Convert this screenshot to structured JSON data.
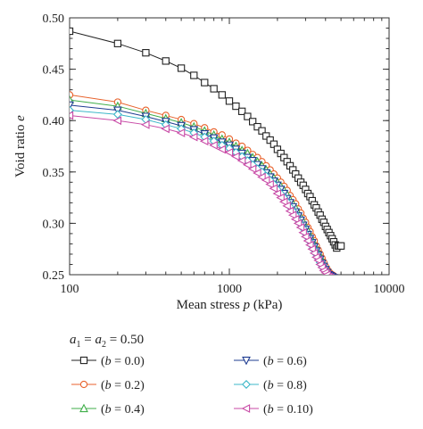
{
  "chart_data": {
    "type": "line",
    "title": "",
    "xlabel_prefix": "Mean stress ",
    "xlabel_var": "p",
    "xlabel_suffix": " (kPa)",
    "ylabel_prefix": "Void ratio ",
    "ylabel_var": "e",
    "x_scale": "log",
    "xlim": [
      100,
      10000
    ],
    "ylim": [
      0.25,
      0.5
    ],
    "x_ticks": [
      100,
      1000,
      10000
    ],
    "x_tick_labels": [
      "100",
      "1000",
      "10000"
    ],
    "y_ticks": [
      0.25,
      0.3,
      0.35,
      0.4,
      0.45,
      0.5
    ],
    "y_tick_labels": [
      "0.25",
      "0.30",
      "0.35",
      "0.40",
      "0.45",
      "0.50"
    ],
    "grid": false,
    "legend_header": {
      "a": "a",
      "sub1": "1",
      "eq1": " = ",
      "sub2": "2",
      "eq2": " = 0.50"
    },
    "legend_position": "below",
    "series": [
      {
        "name": "(b = 0.0)",
        "var": "b",
        "val": " = 0.0)",
        "marker": "square",
        "color": "#222222",
        "x": [
          100,
          200,
          300,
          400,
          500,
          600,
          700,
          800,
          900,
          1000,
          1100,
          1200,
          1300,
          1400,
          1500,
          1600,
          1700,
          1800,
          1900,
          2000,
          2100,
          2200,
          2300,
          2400,
          2500,
          2600,
          2700,
          2800,
          2900,
          3000,
          3100,
          3200,
          3300,
          3400,
          3500,
          3600,
          3700,
          3800,
          3900,
          4000,
          4100,
          4200,
          4300,
          4400,
          4500,
          4600,
          4700,
          4800,
          4900,
          5000
        ],
        "y": [
          0.487,
          0.475,
          0.466,
          0.458,
          0.451,
          0.444,
          0.437,
          0.431,
          0.425,
          0.419,
          0.414,
          0.409,
          0.404,
          0.399,
          0.394,
          0.39,
          0.385,
          0.381,
          0.377,
          0.372,
          0.368,
          0.364,
          0.36,
          0.356,
          0.352,
          0.348,
          0.344,
          0.34,
          0.337,
          0.333,
          0.329,
          0.326,
          0.322,
          0.318,
          0.315,
          0.311,
          0.308,
          0.304,
          0.301,
          0.297,
          0.294,
          0.291,
          0.288,
          0.285,
          0.282,
          0.279,
          0.276,
          0.278,
          0.278,
          0.278
        ]
      },
      {
        "name": "(b = 0.2)",
        "var": "b",
        "val": " = 0.2)",
        "marker": "circle",
        "color": "#e8622c",
        "x": [
          100,
          200,
          300,
          400,
          500,
          600,
          700,
          800,
          900,
          1000,
          1100,
          1200,
          1300,
          1400,
          1500,
          1600,
          1700,
          1800,
          1900,
          2000,
          2100,
          2200,
          2300,
          2400,
          2500,
          2600,
          2700,
          2800,
          2900,
          3000,
          3100,
          3200,
          3300,
          3400,
          3500,
          3600,
          3700,
          3800,
          3900,
          4000,
          4100,
          4200,
          4300,
          4400,
          4500
        ],
        "y": [
          0.425,
          0.418,
          0.41,
          0.405,
          0.401,
          0.397,
          0.393,
          0.389,
          0.386,
          0.382,
          0.378,
          0.375,
          0.371,
          0.367,
          0.364,
          0.36,
          0.356,
          0.352,
          0.348,
          0.344,
          0.34,
          0.336,
          0.332,
          0.327,
          0.323,
          0.319,
          0.314,
          0.31,
          0.305,
          0.301,
          0.296,
          0.292,
          0.287,
          0.283,
          0.278,
          0.274,
          0.27,
          0.266,
          0.262,
          0.258,
          0.255,
          0.253,
          0.251,
          0.25,
          0.249
        ]
      },
      {
        "name": "(b = 0.4)",
        "var": "b",
        "val": " = 0.4)",
        "marker": "triangle-up",
        "color": "#3fae49",
        "x": [
          100,
          200,
          300,
          400,
          500,
          600,
          700,
          800,
          900,
          1000,
          1100,
          1200,
          1300,
          1400,
          1500,
          1600,
          1700,
          1800,
          1900,
          2000,
          2100,
          2200,
          2300,
          2400,
          2500,
          2600,
          2700,
          2800,
          2900,
          3000,
          3100,
          3200,
          3300,
          3400,
          3500,
          3600,
          3700,
          3800,
          3900,
          4000,
          4100,
          4200,
          4300,
          4400,
          4500
        ],
        "y": [
          0.42,
          0.414,
          0.407,
          0.402,
          0.398,
          0.394,
          0.39,
          0.386,
          0.382,
          0.379,
          0.375,
          0.371,
          0.368,
          0.364,
          0.36,
          0.356,
          0.352,
          0.348,
          0.344,
          0.34,
          0.336,
          0.332,
          0.328,
          0.323,
          0.319,
          0.315,
          0.31,
          0.306,
          0.302,
          0.297,
          0.293,
          0.288,
          0.284,
          0.28,
          0.276,
          0.272,
          0.268,
          0.264,
          0.26,
          0.257,
          0.254,
          0.252,
          0.25,
          0.249,
          0.248
        ]
      },
      {
        "name": "(b = 0.6)",
        "var": "b",
        "val": " = 0.6)",
        "marker": "triangle-down",
        "color": "#1f3c91",
        "x": [
          100,
          200,
          300,
          400,
          500,
          600,
          700,
          800,
          900,
          1000,
          1100,
          1200,
          1300,
          1400,
          1500,
          1600,
          1700,
          1800,
          1900,
          2000,
          2100,
          2200,
          2300,
          2400,
          2500,
          2600,
          2700,
          2800,
          2900,
          3000,
          3100,
          3200,
          3300,
          3400,
          3500,
          3600,
          3700,
          3800,
          3900,
          4000,
          4100,
          4200,
          4300,
          4400,
          4500
        ],
        "y": [
          0.415,
          0.41,
          0.404,
          0.399,
          0.395,
          0.391,
          0.387,
          0.383,
          0.379,
          0.376,
          0.372,
          0.368,
          0.364,
          0.361,
          0.357,
          0.353,
          0.349,
          0.345,
          0.341,
          0.337,
          0.333,
          0.329,
          0.324,
          0.32,
          0.316,
          0.311,
          0.307,
          0.303,
          0.298,
          0.294,
          0.289,
          0.285,
          0.281,
          0.277,
          0.273,
          0.269,
          0.265,
          0.261,
          0.258,
          0.255,
          0.252,
          0.25,
          0.249,
          0.248,
          0.247
        ]
      },
      {
        "name": "(b = 0.8)",
        "var": "b",
        "val": " = 0.8)",
        "marker": "diamond",
        "color": "#3cb7c8",
        "x": [
          100,
          200,
          300,
          400,
          500,
          600,
          700,
          800,
          900,
          1000,
          1100,
          1200,
          1300,
          1400,
          1500,
          1600,
          1700,
          1800,
          1900,
          2000,
          2100,
          2200,
          2300,
          2400,
          2500,
          2600,
          2700,
          2800,
          2900,
          3000,
          3100,
          3200,
          3300,
          3400,
          3500,
          3600,
          3700,
          3800,
          3900,
          4000,
          4100,
          4200,
          4300,
          4400,
          4500
        ],
        "y": [
          0.41,
          0.406,
          0.401,
          0.396,
          0.392,
          0.388,
          0.384,
          0.38,
          0.376,
          0.373,
          0.369,
          0.365,
          0.361,
          0.357,
          0.353,
          0.35,
          0.346,
          0.342,
          0.338,
          0.333,
          0.329,
          0.325,
          0.321,
          0.316,
          0.312,
          0.308,
          0.303,
          0.299,
          0.295,
          0.29,
          0.286,
          0.282,
          0.278,
          0.274,
          0.27,
          0.266,
          0.262,
          0.259,
          0.256,
          0.253,
          0.251,
          0.249,
          0.248,
          0.247,
          0.246
        ]
      },
      {
        "name": "(b = 0.10)",
        "var": "b",
        "val": " = 0.10)",
        "marker": "triangle-left",
        "color": "#c84aa6",
        "x": [
          100,
          200,
          300,
          400,
          500,
          600,
          700,
          800,
          900,
          1000,
          1100,
          1200,
          1300,
          1400,
          1500,
          1600,
          1700,
          1800,
          1900,
          2000,
          2100,
          2200,
          2300,
          2400,
          2500,
          2600,
          2700,
          2800,
          2900,
          3000,
          3100,
          3200,
          3300,
          3400,
          3500,
          3600,
          3700,
          3800,
          3900,
          4000,
          4100,
          4200,
          4300,
          4400,
          4500
        ],
        "y": [
          0.405,
          0.4,
          0.396,
          0.392,
          0.388,
          0.384,
          0.38,
          0.376,
          0.372,
          0.369,
          0.365,
          0.361,
          0.357,
          0.353,
          0.349,
          0.345,
          0.342,
          0.338,
          0.334,
          0.329,
          0.325,
          0.321,
          0.317,
          0.312,
          0.308,
          0.304,
          0.3,
          0.296,
          0.291,
          0.287,
          0.283,
          0.279,
          0.275,
          0.271,
          0.267,
          0.264,
          0.26,
          0.257,
          0.254,
          0.252,
          0.25,
          0.248,
          0.247,
          0.246,
          0.245
        ]
      }
    ]
  }
}
